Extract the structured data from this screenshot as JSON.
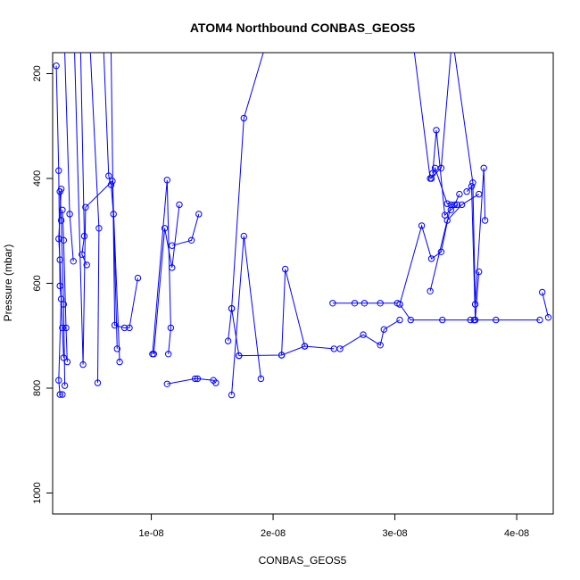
{
  "chart_data": {
    "type": "line",
    "title": "ATOM4 Northbound CONBAS_GEOS5",
    "xlabel": "CONBAS_GEOS5",
    "ylabel": "Pressure (mbar)",
    "xlim": [
      1.9e-09,
      4.3e-08
    ],
    "ylim": [
      1040,
      160
    ],
    "y_reversed": true,
    "x_ticks": [
      {
        "value": 1e-08,
        "label": "1e-08"
      },
      {
        "value": 2e-08,
        "label": "2e-08"
      },
      {
        "value": 3e-08,
        "label": "3e-08"
      },
      {
        "value": 4e-08,
        "label": "4e-08"
      }
    ],
    "y_ticks": [
      {
        "value": 200,
        "label": "200"
      },
      {
        "value": 400,
        "label": "400"
      },
      {
        "value": 600,
        "label": "600"
      },
      {
        "value": 800,
        "label": "800"
      },
      {
        "value": 1000,
        "label": "1000"
      }
    ],
    "series_color": "#0000ff",
    "marker": "open-circle",
    "series": [
      {
        "x": [
          2.2e-09,
          2.4e-09,
          2.5e-09,
          2.6e-09,
          2.4e-09,
          2.5e-09,
          2.7e-09
        ],
        "y": [
          185,
          385,
          605,
          630,
          785,
          812,
          812
        ]
      },
      {
        "x": [
          2.6e-09,
          2.4e-09,
          2.5e-09,
          2.7e-09,
          2.8e-09
        ],
        "y": [
          420,
          515,
          555,
          685,
          742
        ]
      },
      {
        "x": [
          2.5e-09,
          2.6e-09,
          2.8e-09,
          2.9e-09
        ],
        "y": [
          425,
          480,
          640,
          795
        ]
      },
      {
        "x": [
          2.7e-09,
          2.8e-09,
          3e-09,
          3.1e-09
        ],
        "y": [
          460,
          518,
          685,
          750
        ]
      },
      {
        "x": [
          2.9e-09,
          3.3e-09,
          3.6e-09
        ],
        "y": [
          160,
          468,
          558
        ]
      },
      {
        "x": [
          4.2e-09,
          4.5e-09,
          4.3e-09,
          4.7e-09
        ],
        "y": [
          160,
          510,
          545,
          565
        ]
      },
      {
        "x": [
          6.1e-09,
          6.5e-09,
          6.7e-09,
          6.9e-09,
          7.2e-09
        ],
        "y": [
          160,
          395,
          412,
          468,
          725
        ]
      },
      {
        "x": [
          3.7e-09,
          4.4e-09,
          4.6e-09,
          6.8e-09,
          7.4e-09
        ],
        "y": [
          160,
          755,
          455,
          405,
          750
        ]
      },
      {
        "x": [
          5e-09,
          5.7e-09,
          5.6e-09
        ],
        "y": [
          160,
          495,
          790
        ]
      },
      {
        "x": [
          6.7e-09,
          7e-09,
          7.8e-09,
          8.2e-09,
          8.9e-09
        ],
        "y": [
          160,
          680,
          685,
          685,
          590
        ]
      },
      {
        "x": [
          1.01e-08,
          1.13e-08,
          1.16e-08,
          1.14e-08
        ],
        "y": [
          735,
          403,
          685,
          735
        ]
      },
      {
        "x": [
          1.02e-08,
          1.11e-08,
          1.17e-08,
          1.23e-08
        ],
        "y": [
          735,
          495,
          570,
          450
        ]
      },
      {
        "x": [
          1.17e-08,
          1.33e-08,
          1.39e-08
        ],
        "y": [
          528,
          518,
          468
        ]
      },
      {
        "x": [
          1.13e-08,
          1.36e-08,
          1.38e-08,
          1.51e-08,
          1.53e-08
        ],
        "y": [
          792,
          782,
          782,
          785,
          790
        ]
      },
      {
        "x": [
          1.63e-08,
          1.66e-08,
          1.72e-08
        ],
        "y": [
          710,
          648,
          738
        ]
      },
      {
        "x": [
          1.66e-08,
          1.76e-08,
          1.9e-08
        ],
        "y": [
          813,
          510,
          782
        ]
      },
      {
        "x": [
          1.66e-08,
          1.76e-08,
          1.92e-08
        ],
        "y": [
          648,
          285,
          160
        ]
      },
      {
        "x": [
          2.07e-08,
          2.1e-08,
          2.26e-08
        ],
        "y": [
          737,
          573,
          720
        ]
      },
      {
        "x": [
          1.72e-08,
          2.07e-08,
          2.26e-08,
          2.5e-08
        ],
        "y": [
          738,
          737,
          720,
          725
        ]
      },
      {
        "x": [
          2.49e-08,
          2.67e-08,
          2.75e-08,
          2.88e-08,
          3.02e-08
        ],
        "y": [
          638,
          638,
          638,
          638,
          638
        ]
      },
      {
        "x": [
          2.55e-08,
          2.74e-08,
          2.88e-08,
          2.91e-08,
          3.04e-08
        ],
        "y": [
          725,
          698,
          718,
          688,
          670
        ]
      },
      {
        "x": [
          3.04e-08,
          3.13e-08,
          3.39e-08,
          3.62e-08,
          3.65e-08,
          3.83e-08,
          4.19e-08
        ],
        "y": [
          640,
          670,
          670,
          670,
          670,
          670,
          670
        ]
      },
      {
        "x": [
          3.04e-08,
          3.22e-08,
          3.3e-08,
          3.38e-08,
          3.46e-08
        ],
        "y": [
          640,
          490,
          553,
          540,
          450
        ]
      },
      {
        "x": [
          3.3e-08,
          3.33e-08,
          3.43e-08,
          3.49e-08,
          3.53e-08
        ],
        "y": [
          400,
          380,
          448,
          450,
          430
        ]
      },
      {
        "x": [
          3.31e-08,
          3.34e-08,
          3.41e-08,
          3.46e-08,
          3.51e-08
        ],
        "y": [
          390,
          308,
          470,
          460,
          450
        ]
      },
      {
        "x": [
          3.59e-08,
          3.63e-08,
          3.66e-08,
          3.69e-08
        ],
        "y": [
          425,
          415,
          670,
          578
        ]
      },
      {
        "x": [
          3.49e-08,
          3.64e-08,
          3.66e-08,
          3.73e-08,
          3.74e-08
        ],
        "y": [
          160,
          408,
          640,
          380,
          480
        ]
      },
      {
        "x": [
          3.29e-08,
          3.43e-08,
          3.55e-08,
          3.69e-08
        ],
        "y": [
          615,
          480,
          450,
          430
        ]
      },
      {
        "x": [
          3.16e-08,
          3.29e-08,
          3.38e-08,
          3.46e-08
        ],
        "y": [
          160,
          400,
          380,
          160
        ]
      },
      {
        "x": [
          4.21e-08,
          4.26e-08
        ],
        "y": [
          617,
          665
        ]
      }
    ]
  }
}
